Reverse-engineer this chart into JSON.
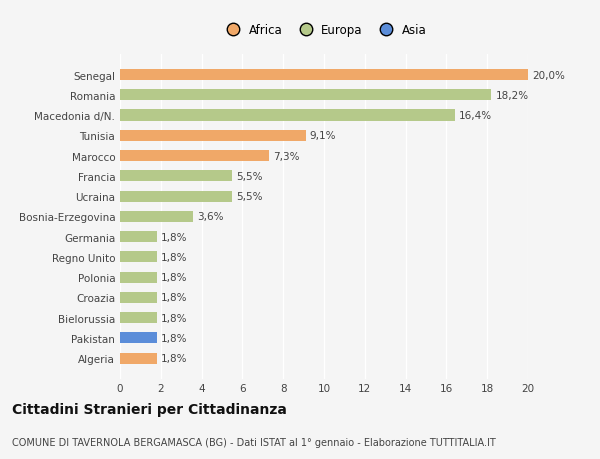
{
  "countries": [
    "Algeria",
    "Pakistan",
    "Bielorussia",
    "Croazia",
    "Polonia",
    "Regno Unito",
    "Germania",
    "Bosnia-Erzegovina",
    "Ucraina",
    "Francia",
    "Marocco",
    "Tunisia",
    "Macedonia d/N.",
    "Romania",
    "Senegal"
  ],
  "values": [
    1.8,
    1.8,
    1.8,
    1.8,
    1.8,
    1.8,
    1.8,
    3.6,
    5.5,
    5.5,
    7.3,
    9.1,
    16.4,
    18.2,
    20.0
  ],
  "labels": [
    "1,8%",
    "1,8%",
    "1,8%",
    "1,8%",
    "1,8%",
    "1,8%",
    "1,8%",
    "3,6%",
    "5,5%",
    "5,5%",
    "7,3%",
    "9,1%",
    "16,4%",
    "18,2%",
    "20,0%"
  ],
  "colors": [
    "#f0a868",
    "#5b8dd9",
    "#b5c98a",
    "#b5c98a",
    "#b5c98a",
    "#b5c98a",
    "#b5c98a",
    "#b5c98a",
    "#b5c98a",
    "#b5c98a",
    "#f0a868",
    "#f0a868",
    "#b5c98a",
    "#b5c98a",
    "#f0a868"
  ],
  "legend_labels": [
    "Africa",
    "Europa",
    "Asia"
  ],
  "legend_colors": [
    "#f0a868",
    "#b5c98a",
    "#5b8dd9"
  ],
  "xlim": [
    0,
    20
  ],
  "xticks": [
    0,
    2,
    4,
    6,
    8,
    10,
    12,
    14,
    16,
    18,
    20
  ],
  "title": "Cittadini Stranieri per Cittadinanza",
  "subtitle": "COMUNE DI TAVERNOLA BERGAMASCA (BG) - Dati ISTAT al 1° gennaio - Elaborazione TUTTITALIA.IT",
  "bg_color": "#f5f5f5",
  "bar_height": 0.55,
  "grid_color": "#ffffff",
  "label_fontsize": 7.5,
  "tick_fontsize": 7.5,
  "title_fontsize": 10,
  "subtitle_fontsize": 7
}
